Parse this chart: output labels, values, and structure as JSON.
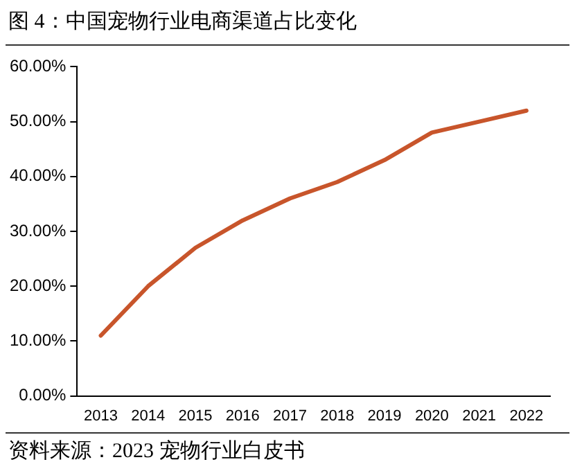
{
  "chart_data": {
    "type": "line",
    "title": "图 4：中国宠物行业电商渠道占比变化",
    "categories": [
      "2013",
      "2014",
      "2015",
      "2016",
      "2017",
      "2018",
      "2019",
      "2020",
      "2021",
      "2022"
    ],
    "series": [
      {
        "color": "#c8552b",
        "values": [
          11,
          20,
          27,
          32,
          36,
          39,
          43,
          48,
          50,
          52
        ]
      }
    ],
    "ylim": [
      0,
      60
    ],
    "yticks": [
      {
        "value": 0,
        "label": "0.00%"
      },
      {
        "value": 10,
        "label": "10.00%"
      },
      {
        "value": 20,
        "label": "20.00%"
      },
      {
        "value": 30,
        "label": "30.00%"
      },
      {
        "value": 40,
        "label": "40.00%"
      },
      {
        "value": 50,
        "label": "50.00%"
      },
      {
        "value": 60,
        "label": "60.00%"
      }
    ],
    "grid": false,
    "legend": false,
    "marker": "none",
    "line_style": "solid",
    "annotations": [
      "资料来源：2023 宠物行业白皮书"
    ]
  }
}
